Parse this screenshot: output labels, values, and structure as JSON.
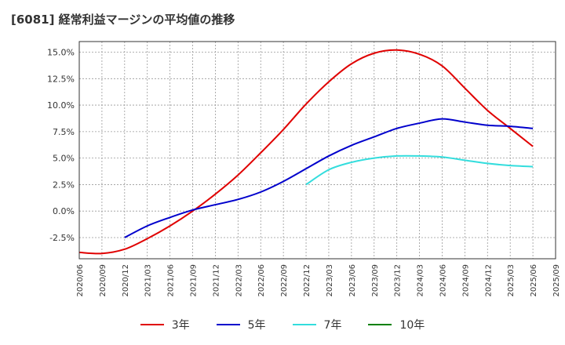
{
  "chart_data": {
    "type": "line",
    "title": "[6081]  経常利益マージンの平均値の推移",
    "xlabel": "",
    "ylabel": "",
    "ylim": [
      -4.5,
      16.0
    ],
    "y_ticks": [
      {
        "value": 15.0,
        "label": "15.0%"
      },
      {
        "value": 12.5,
        "label": "12.5%"
      },
      {
        "value": 10.0,
        "label": "10.0%"
      },
      {
        "value": 7.5,
        "label": "7.5%"
      },
      {
        "value": 5.0,
        "label": "5.0%"
      },
      {
        "value": 2.5,
        "label": "2.5%"
      },
      {
        "value": 0.0,
        "label": "0.0%"
      },
      {
        "value": -2.5,
        "label": "-2.5%"
      }
    ],
    "x_ticks": [
      "2020/06",
      "2020/09",
      "2020/12",
      "2021/03",
      "2021/06",
      "2021/09",
      "2021/12",
      "2022/03",
      "2022/06",
      "2022/09",
      "2022/12",
      "2023/03",
      "2023/06",
      "2023/09",
      "2023/12",
      "2024/03",
      "2024/06",
      "2024/09",
      "2024/12",
      "2025/03",
      "2025/06",
      "2025/09"
    ],
    "grid": true,
    "legend_position": "bottom",
    "series": [
      {
        "name": "3年",
        "color": "#e00000",
        "x": [
          "2020/06",
          "2020/09",
          "2020/12",
          "2021/03",
          "2021/06",
          "2021/09",
          "2021/12",
          "2022/03",
          "2022/06",
          "2022/09",
          "2022/12",
          "2023/03",
          "2023/06",
          "2023/09",
          "2023/12",
          "2024/03",
          "2024/06",
          "2024/09",
          "2024/12",
          "2025/03",
          "2025/06"
        ],
        "y": [
          -3.9,
          -4.0,
          -3.6,
          -2.6,
          -1.4,
          0.0,
          1.6,
          3.4,
          5.5,
          7.7,
          10.1,
          12.2,
          13.9,
          14.9,
          15.2,
          14.8,
          13.7,
          11.6,
          9.5,
          7.8,
          6.1
        ]
      },
      {
        "name": "5年",
        "color": "#0000cc",
        "x": [
          "2020/12",
          "2021/03",
          "2021/06",
          "2021/09",
          "2021/12",
          "2022/03",
          "2022/06",
          "2022/09",
          "2022/12",
          "2023/03",
          "2023/06",
          "2023/09",
          "2023/12",
          "2024/03",
          "2024/06",
          "2024/09",
          "2024/12",
          "2025/03",
          "2025/06"
        ],
        "y": [
          -2.5,
          -1.4,
          -0.6,
          0.1,
          0.6,
          1.1,
          1.8,
          2.8,
          4.0,
          5.2,
          6.2,
          7.0,
          7.8,
          8.3,
          8.7,
          8.4,
          8.1,
          8.0,
          7.8
        ]
      },
      {
        "name": "7年",
        "color": "#33dddd",
        "x": [
          "2022/12",
          "2023/03",
          "2023/06",
          "2023/09",
          "2023/12",
          "2024/03",
          "2024/06",
          "2024/09",
          "2024/12",
          "2025/03",
          "2025/06"
        ],
        "y": [
          2.5,
          3.9,
          4.6,
          5.0,
          5.2,
          5.2,
          5.1,
          4.8,
          4.5,
          4.3,
          4.2
        ]
      },
      {
        "name": "10年",
        "color": "#008000",
        "x": [],
        "y": []
      }
    ]
  }
}
